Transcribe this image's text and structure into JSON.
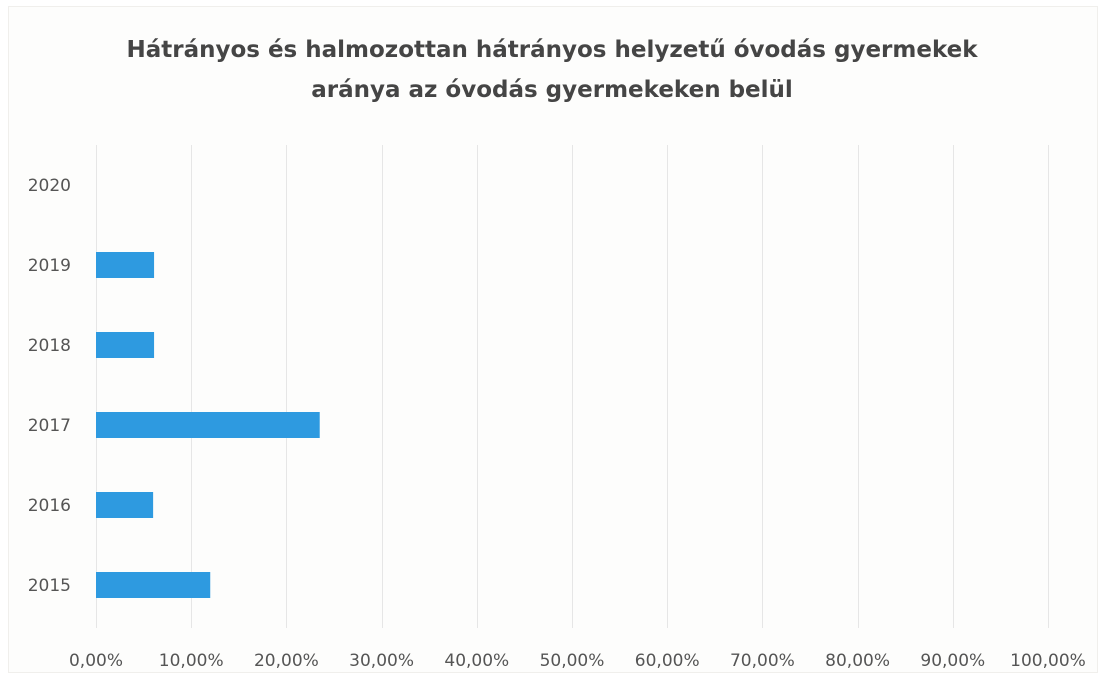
{
  "chart_data": {
    "type": "bar",
    "orientation": "horizontal",
    "title_lines": [
      "Hátrányos és halmozottan hátrányos helyzetű óvodás gyermekek",
      "aránya az óvodás gyermekeken belül"
    ],
    "categories": [
      "2015",
      "2016",
      "2017",
      "2018",
      "2019",
      "2020"
    ],
    "values": [
      0.12,
      0.06,
      0.235,
      0.061,
      0.061,
      0
    ],
    "xlim": [
      0,
      1
    ],
    "x_ticks": [
      0,
      0.1,
      0.2,
      0.3,
      0.4,
      0.5,
      0.6,
      0.7,
      0.8,
      0.9,
      1.0
    ],
    "x_tick_labels": [
      "0,00%",
      "10,00%",
      "20,00%",
      "30,00%",
      "40,00%",
      "50,00%",
      "60,00%",
      "70,00%",
      "80,00%",
      "90,00%",
      "100,00%"
    ],
    "vertical_grid": true,
    "legend": "none",
    "bar_color": "#2e9ae0",
    "grid_color": "#e6e6e6"
  }
}
